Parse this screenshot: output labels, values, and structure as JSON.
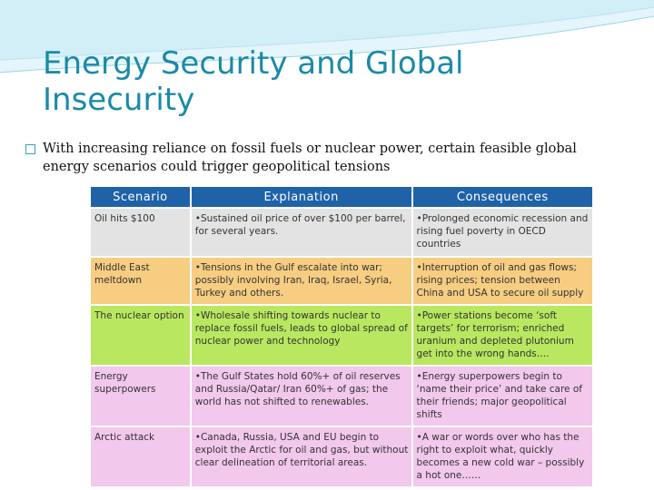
{
  "slide": {
    "title": "Energy Security and Global Insecurity",
    "bullet": "With increasing reliance on fossil fuels or nuclear power, certain feasible global energy scenarios could trigger geopolitical tensions"
  },
  "table": {
    "headers": [
      "Scenario",
      "Explanation",
      "Consequences"
    ],
    "rows": [
      {
        "scenario": "Oil hits $100",
        "explanation": "•Sustained oil price of over $100 per barrel, for several years.",
        "consequences": "•Prolonged economic recession and rising fuel poverty in OECD countries"
      },
      {
        "scenario": "Middle East meltdown",
        "explanation": "•Tensions in the Gulf escalate into war; possibly involving Iran, Iraq, Israel, Syria, Turkey and others.",
        "consequences": "•Interruption of oil and gas flows; rising prices; tension between China and USA to secure oil supply"
      },
      {
        "scenario": "The nuclear option",
        "explanation": "•Wholesale shifting towards nuclear to replace fossil fuels, leads to global spread of nuclear power and technology",
        "consequences": "•Power stations become ‘soft targets’ for terrorism; enriched uranium and depleted plutonium get into the wrong hands…."
      },
      {
        "scenario": "Energy superpowers",
        "explanation": "•The Gulf States hold 60%+ of oil reserves and Russia/Qatar/ Iran 60%+ of gas; the world has not shifted to renewables.",
        "consequences": "•Energy superpowers begin to ‘name their price’ and take care of their friends; major geopolitical shifts"
      },
      {
        "scenario": "Arctic attack",
        "explanation": "•Canada, Russia, USA and EU begin to exploit the Arctic for oil and gas, but without clear delineation of territorial areas.",
        "consequences": "•A war or words over who has the right to exploit what, quickly becomes a new cold war – possibly a hot one……"
      }
    ]
  },
  "colors": {
    "title": "#1a8aa8",
    "header_bg": "#1f62a8",
    "row_gray": "#e3e3e3",
    "row_green": "#b9e860",
    "row_orange": "#f7cd82",
    "row_pink": "#f2c8ec"
  }
}
